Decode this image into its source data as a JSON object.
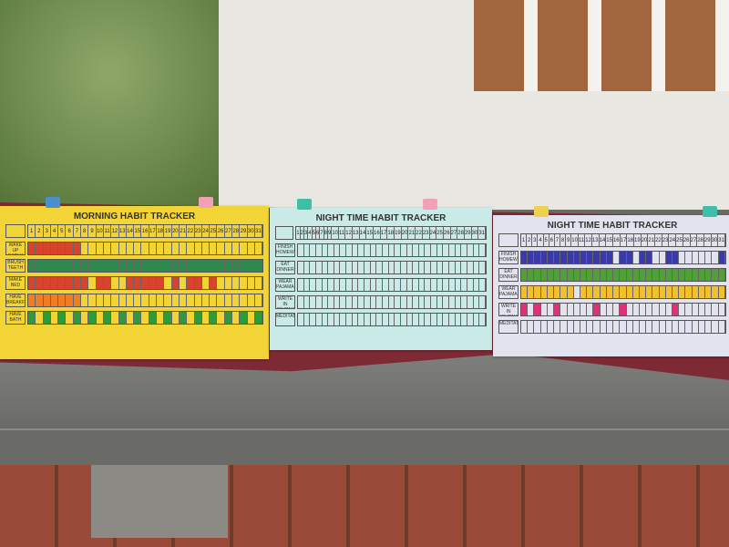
{
  "days": 31,
  "trackers": [
    {
      "title": "MORNING HABIT TRACKER",
      "bg": "#f3d437",
      "rows": [
        {
          "label": "WAKE UP EARLY",
          "color": "#d8432e",
          "done": [
            1,
            2,
            3,
            4,
            5,
            6,
            7
          ]
        },
        {
          "label": "BRUSH TEETH",
          "color": "#2e8a4c",
          "done": [
            1,
            2,
            3,
            4,
            5,
            6,
            7,
            8,
            9,
            10,
            11,
            12,
            13,
            14,
            15,
            16,
            17,
            18,
            19,
            20,
            21,
            22,
            23,
            24,
            25,
            26,
            27,
            28,
            29,
            30,
            31
          ]
        },
        {
          "label": "MAKE BED",
          "color": "#d8432e",
          "done": [
            1,
            2,
            3,
            4,
            5,
            6,
            7,
            8,
            10,
            11,
            14,
            15,
            16,
            17,
            18,
            20,
            22,
            23,
            25
          ]
        },
        {
          "label": "HAVE BREAKFAST",
          "color": "#f07d22",
          "done": [
            1,
            2,
            3,
            4,
            5,
            6,
            7
          ]
        },
        {
          "label": "HAVE BATH",
          "color": "#2f9a3a",
          "done": [
            1,
            3,
            5,
            7,
            9,
            11,
            13,
            15,
            17,
            19,
            21,
            23,
            25,
            27,
            29,
            31
          ]
        }
      ]
    },
    {
      "title": "NIGHT TIME HABIT TRACKER",
      "bg": "#c9eae6",
      "rows": [
        {
          "label": "FINISH HOMEWORK",
          "color": "#3a3aa8",
          "done": []
        },
        {
          "label": "EAT DINNER",
          "color": "#3a9a3a",
          "done": []
        },
        {
          "label": "WEAR PAJAMAS",
          "color": "#f0c030",
          "done": []
        },
        {
          "label": "WRITE IN JOURNAL",
          "color": "#e0307a",
          "done": []
        },
        {
          "label": "MEDITATE",
          "color": "#888888",
          "done": []
        }
      ]
    },
    {
      "title": "NIGHT TIME HABIT TRACKER",
      "bg": "#e3e3ef",
      "rows": [
        {
          "label": "FINISH HOMEWORK",
          "color": "#3a3aa8",
          "done": [
            1,
            2,
            3,
            4,
            5,
            6,
            7,
            8,
            9,
            10,
            11,
            12,
            13,
            14,
            16,
            17,
            19,
            20,
            23,
            24,
            31
          ]
        },
        {
          "label": "EAT DINNER",
          "color": "#4fa038",
          "done": [
            1,
            2,
            3,
            4,
            5,
            6,
            7,
            8,
            9,
            10,
            11,
            12,
            13,
            14,
            15,
            16,
            17,
            18,
            19,
            20,
            21,
            22,
            23,
            24,
            25,
            26,
            27,
            28,
            29,
            30,
            31
          ]
        },
        {
          "label": "WEAR PAJAMAS",
          "color": "#f0c030",
          "done": [
            1,
            2,
            3,
            4,
            5,
            6,
            7,
            8,
            10,
            11,
            12,
            13,
            14,
            15,
            16,
            17,
            18,
            19,
            20,
            21,
            22,
            23,
            24,
            25,
            26,
            27,
            28,
            29,
            30,
            31
          ]
        },
        {
          "label": "WRITE IN JOURNAL",
          "color": "#e0307a",
          "done": [
            1,
            3,
            6,
            12,
            16,
            24
          ]
        },
        {
          "label": "MEDITATE",
          "color": "#888888",
          "done": []
        }
      ]
    }
  ],
  "clip_colors": [
    "#4a8fd0",
    "#f2a0b8",
    "#3ec0a8",
    "#f2a0b8",
    "#f0d050",
    "#3ec0a8"
  ]
}
